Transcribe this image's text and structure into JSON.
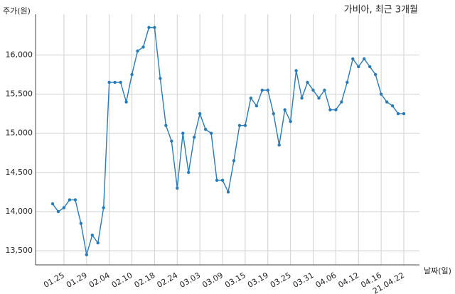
{
  "chart_data": {
    "type": "line",
    "title": "가비아, 최근 3개월",
    "y_label": "주가(원)",
    "x_label": "날짜(일)",
    "categories": [
      null,
      null,
      "01.25",
      null,
      null,
      null,
      "01.29",
      null,
      null,
      null,
      "02.04",
      null,
      null,
      null,
      "02.10",
      null,
      null,
      null,
      "02.18",
      null,
      null,
      null,
      "02.24",
      null,
      null,
      null,
      "03.03",
      null,
      null,
      null,
      "03.09",
      null,
      null,
      null,
      "03.15",
      null,
      null,
      null,
      "03.19",
      null,
      null,
      null,
      "03.25",
      null,
      null,
      null,
      "03.31",
      null,
      null,
      null,
      "04.06",
      null,
      null,
      null,
      "04.12",
      null,
      null,
      null,
      "04.16",
      null,
      null,
      null,
      "21.04.22"
    ],
    "series": [
      {
        "name": "가비아",
        "color": "#2a7ab5",
        "values": [
          14100,
          14000,
          14050,
          14150,
          14150,
          13850,
          13450,
          13700,
          13600,
          14050,
          15650,
          15650,
          15650,
          15400,
          15750,
          16050,
          16100,
          16350,
          16350,
          15700,
          15100,
          14900,
          14300,
          15000,
          14500,
          14950,
          15250,
          15050,
          15000,
          14400,
          14400,
          14250,
          14650,
          15100,
          15100,
          15450,
          15350,
          15550,
          15550,
          15250,
          14850,
          15300,
          15150,
          15800,
          15450,
          15650,
          15550,
          15450,
          15550,
          15300,
          15300,
          15400,
          15650,
          15950,
          15850,
          15950,
          15850,
          15750,
          15500,
          15400,
          15350,
          15250,
          15250
        ]
      }
    ],
    "ylim": [
      13320,
      16520
    ],
    "yticks": [
      {
        "value": 13500,
        "label": "13,500"
      },
      {
        "value": 14000,
        "label": "14,000"
      },
      {
        "value": 14500,
        "label": "14,500"
      },
      {
        "value": 15000,
        "label": "15,000"
      },
      {
        "value": 15500,
        "label": "15,500"
      },
      {
        "value": 16000,
        "label": "16,000"
      }
    ],
    "grid": true
  }
}
